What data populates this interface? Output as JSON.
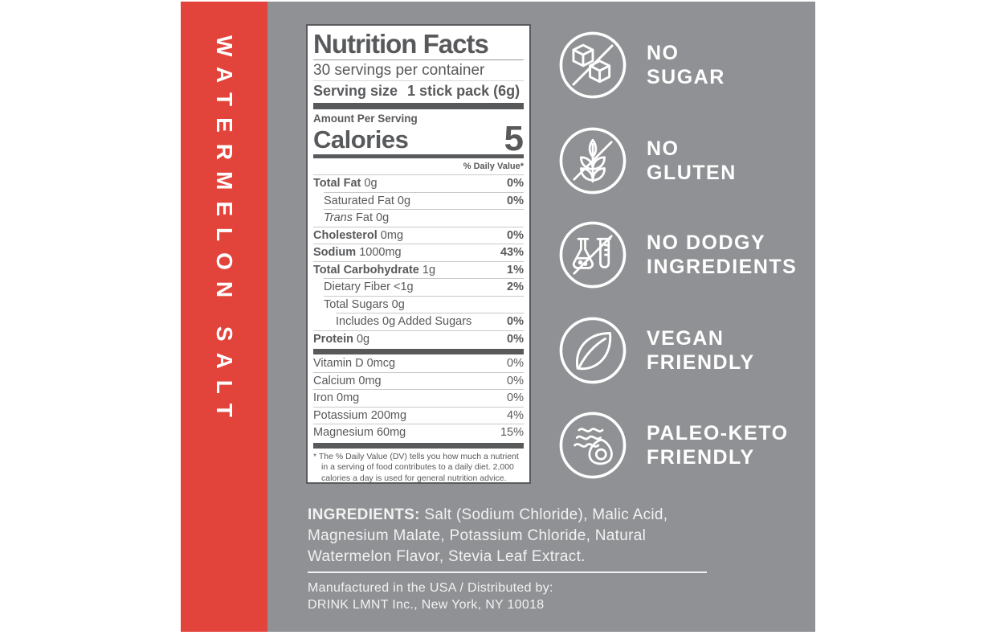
{
  "flavor_band": {
    "text": "WATERMELON SALT",
    "color": "#e2433a"
  },
  "colors": {
    "panel_gray": "#909194",
    "label_text": "#58595b",
    "accent_red": "#e2433a",
    "icon_white": "#ffffff"
  },
  "nutrition_label": {
    "title": "Nutrition Facts",
    "servings_per_container": "30 servings per container",
    "serving_size_label": "Serving size",
    "serving_size_value": "1 stick pack (6g)",
    "amount_per_serving": "Amount Per Serving",
    "calories_label": "Calories",
    "calories_value": "5",
    "daily_value_header": "% Daily Value*",
    "main_rows": [
      {
        "bold": "Total Fat",
        "rest": "0g",
        "dv": "0%",
        "dv_bold": true,
        "indent": 0
      },
      {
        "rest": "Saturated Fat 0g",
        "dv": "0%",
        "dv_bold": true,
        "indent": 1
      },
      {
        "italic": "Trans",
        "rest": "Fat 0g",
        "dv": "",
        "dv_bold": true,
        "indent": 1
      },
      {
        "bold": "Cholesterol",
        "rest": "0mg",
        "dv": "0%",
        "dv_bold": true,
        "indent": 0
      },
      {
        "bold": "Sodium",
        "rest": "1000mg",
        "dv": "43%",
        "dv_bold": true,
        "indent": 0
      },
      {
        "bold": "Total Carbohydrate",
        "rest": "1g",
        "dv": "1%",
        "dv_bold": true,
        "indent": 0
      },
      {
        "rest": "Dietary Fiber <1g",
        "dv": "2%",
        "dv_bold": true,
        "indent": 1
      },
      {
        "rest": "Total Sugars 0g",
        "dv": "",
        "dv_bold": true,
        "indent": 1
      },
      {
        "rest": "Includes 0g Added Sugars",
        "dv": "0%",
        "dv_bold": true,
        "indent": 2
      },
      {
        "bold": "Protein",
        "rest": "0g",
        "dv": "0%",
        "dv_bold": true,
        "indent": 0
      }
    ],
    "micro_rows": [
      {
        "rest": "Vitamin D 0mcg",
        "dv": "0%",
        "dv_bold": false,
        "indent": 0
      },
      {
        "rest": "Calcium 0mg",
        "dv": "0%",
        "dv_bold": false,
        "indent": 0
      },
      {
        "rest": "Iron 0mg",
        "dv": "0%",
        "dv_bold": false,
        "indent": 0
      },
      {
        "rest": "Potassium 200mg",
        "dv": "4%",
        "dv_bold": false,
        "indent": 0
      },
      {
        "rest": "Magnesium 60mg",
        "dv": "15%",
        "dv_bold": false,
        "indent": 0
      }
    ],
    "footnote": "* The % Daily Value (DV) tells you how much a nutrient in a serving of food contributes to a daily diet. 2,000 calories a day is used for general nutrition advice."
  },
  "claims": [
    {
      "icon": "no-sugar-icon",
      "line1": "NO",
      "line2": "SUGAR"
    },
    {
      "icon": "no-gluten-icon",
      "line1": "NO",
      "line2": "GLUTEN"
    },
    {
      "icon": "no-dodgy-ingredients-icon",
      "line1": "NO DODGY",
      "line2": "INGREDIENTS"
    },
    {
      "icon": "vegan-friendly-icon",
      "line1": "VEGAN",
      "line2": "FRIENDLY"
    },
    {
      "icon": "paleo-keto-friendly-icon",
      "line1": "PALEO-KETO",
      "line2": "FRIENDLY"
    }
  ],
  "ingredients": {
    "label": "INGREDIENTS:",
    "text": "Salt (Sodium Chloride), Malic Acid, Magnesium Malate, Potassium Chloride, Natural Watermelon Flavor, Stevia Leaf Extract."
  },
  "manufactured": {
    "line1": "Manufactured in the USA / Distributed by:",
    "line2": "DRINK LMNT Inc., New York, NY 10018"
  }
}
